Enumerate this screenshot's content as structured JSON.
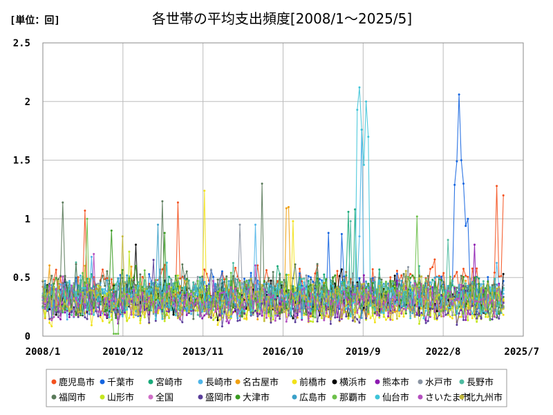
{
  "chart_data": {
    "type": "line",
    "title": "各世帯の平均支出頻度[2008/1～2025/5]",
    "unit_label": "[単位：回]",
    "xlabel": "",
    "ylabel": "",
    "x_start": "2008-01",
    "x_end": "2025-05",
    "x_tick_labels": [
      "2008/1",
      "2010/12",
      "2013/11",
      "2016/10",
      "2019/9",
      "2022/8",
      "2025/7"
    ],
    "y_tick_labels": [
      "0",
      "0.5",
      "1",
      "1.5",
      "2",
      "2.5"
    ],
    "ylim": [
      0,
      2.5
    ],
    "grid": true,
    "legend_position": "bottom",
    "series": [
      {
        "name": "鹿児島市",
        "color": "#f4511e",
        "base": 0.4,
        "amp": 0.15,
        "peaks": [
          {
            "x": "2013-02",
            "y": 1.14
          },
          {
            "x": "2009-08",
            "y": 1.07
          },
          {
            "x": "2025-02",
            "y": 1.28
          },
          {
            "x": "2025-05",
            "y": 1.2
          }
        ]
      },
      {
        "name": "千葉市",
        "color": "#1565e0",
        "base": 0.35,
        "amp": 0.14,
        "peaks": [
          {
            "x": "2023-07",
            "y": 1.29
          },
          {
            "x": "2023-08",
            "y": 1.49
          },
          {
            "x": "2023-09",
            "y": 2.06
          },
          {
            "x": "2023-10",
            "y": 1.5
          },
          {
            "x": "2023-11",
            "y": 1.3
          },
          {
            "x": "2023-12",
            "y": 0.94
          },
          {
            "x": "2024-01",
            "y": 1.0
          },
          {
            "x": "2018-10",
            "y": 0.88
          },
          {
            "x": "2019-04",
            "y": 0.87
          }
        ]
      },
      {
        "name": "宮崎市",
        "color": "#1aaa7a",
        "base": 0.35,
        "amp": 0.13,
        "peaks": [
          {
            "x": "2019-07",
            "y": 1.06
          },
          {
            "x": "2019-10",
            "y": 1.08
          }
        ]
      },
      {
        "name": "長崎市",
        "color": "#4fb5e8",
        "base": 0.33,
        "amp": 0.13,
        "peaks": [
          {
            "x": "2019-12",
            "y": 0.85
          },
          {
            "x": "2020-01",
            "y": 1.76
          },
          {
            "x": "2016-01",
            "y": 0.95
          }
        ]
      },
      {
        "name": "名古屋市",
        "color": "#f0a010",
        "base": 0.3,
        "amp": 0.13,
        "peaks": [
          {
            "x": "2017-03",
            "y": 1.09
          },
          {
            "x": "2017-04",
            "y": 1.1
          }
        ]
      },
      {
        "name": "前橋市",
        "color": "#f2e21a",
        "base": 0.25,
        "amp": 0.12,
        "peaks": [
          {
            "x": "2014-02",
            "y": 1.24
          },
          {
            "x": "2017-06",
            "y": 0.98
          }
        ]
      },
      {
        "name": "横浜市",
        "color": "#000000",
        "base": 0.3,
        "amp": 0.12,
        "peaks": [
          {
            "x": "2011-07",
            "y": 0.78
          },
          {
            "x": "2025-05",
            "y": 0.53
          }
        ]
      },
      {
        "name": "熊本市",
        "color": "#8c1ab0",
        "base": 0.28,
        "amp": 0.12,
        "peaks": [
          {
            "x": "2024-04",
            "y": 0.78
          }
        ]
      },
      {
        "name": "水戸市",
        "color": "#8a94a2",
        "base": 0.33,
        "amp": 0.13,
        "peaks": [
          {
            "x": "2015-06",
            "y": 0.95
          }
        ]
      },
      {
        "name": "長野市",
        "color": "#4dbba0",
        "base": 0.32,
        "amp": 0.13,
        "peaks": [
          {
            "x": "2019-08",
            "y": 0.98
          },
          {
            "x": "2023-04",
            "y": 0.82
          }
        ]
      },
      {
        "name": "福岡市",
        "color": "#5a7a5a",
        "base": 0.35,
        "amp": 0.14,
        "peaks": [
          {
            "x": "2008-10",
            "y": 1.14
          },
          {
            "x": "2012-07",
            "y": 1.15
          },
          {
            "x": "2016-04",
            "y": 1.3
          }
        ]
      },
      {
        "name": "山形市",
        "color": "#c4e620",
        "base": 0.27,
        "amp": 0.12,
        "peaks": [
          {
            "x": "2011-04",
            "y": 0.72
          }
        ]
      },
      {
        "name": "全国",
        "color": "#d06fc8",
        "base": 0.3,
        "amp": 0.05,
        "peaks": []
      },
      {
        "name": "盛岡市",
        "color": "#5a3e9a",
        "base": 0.24,
        "amp": 0.12,
        "peaks": [
          {
            "x": "2012-03",
            "y": 0.65
          }
        ]
      },
      {
        "name": "大津市",
        "color": "#3b9b22",
        "base": 0.33,
        "amp": 0.13,
        "peaks": [
          {
            "x": "2010-08",
            "y": 0.9
          },
          {
            "x": "2012-08",
            "y": 0.88
          }
        ]
      },
      {
        "name": "広島市",
        "color": "#3aa0c8",
        "base": 0.34,
        "amp": 0.13,
        "peaks": [
          {
            "x": "2012-05",
            "y": 0.95
          }
        ]
      },
      {
        "name": "那覇市",
        "color": "#6dc04a",
        "base": 0.33,
        "amp": 0.14,
        "peaks": [
          {
            "x": "2009-09",
            "y": 1.0
          },
          {
            "x": "2022-02",
            "y": 1.02
          },
          {
            "x": "2010-09",
            "y": 0.02
          },
          {
            "x": "2010-10",
            "y": 0.02
          },
          {
            "x": "2010-11",
            "y": 0.02
          }
        ]
      },
      {
        "name": "仙台市",
        "color": "#3ec4d8",
        "base": 0.3,
        "amp": 0.12,
        "peaks": [
          {
            "x": "2019-11",
            "y": 1.93
          },
          {
            "x": "2019-12",
            "y": 2.12
          },
          {
            "x": "2020-01",
            "y": 1.76
          },
          {
            "x": "2020-02",
            "y": 1.46
          },
          {
            "x": "2020-03",
            "y": 2.0
          },
          {
            "x": "2020-04",
            "y": 1.7
          }
        ]
      },
      {
        "name": "さいたま市",
        "color": "#b44fbf",
        "base": 0.28,
        "amp": 0.12,
        "peaks": [
          {
            "x": "2009-12",
            "y": 0.7
          }
        ]
      },
      {
        "name": "北九州市",
        "color": "#c2b93a",
        "base": 0.31,
        "amp": 0.13,
        "peaks": [
          {
            "x": "2011-01",
            "y": 0.85
          }
        ]
      }
    ]
  }
}
